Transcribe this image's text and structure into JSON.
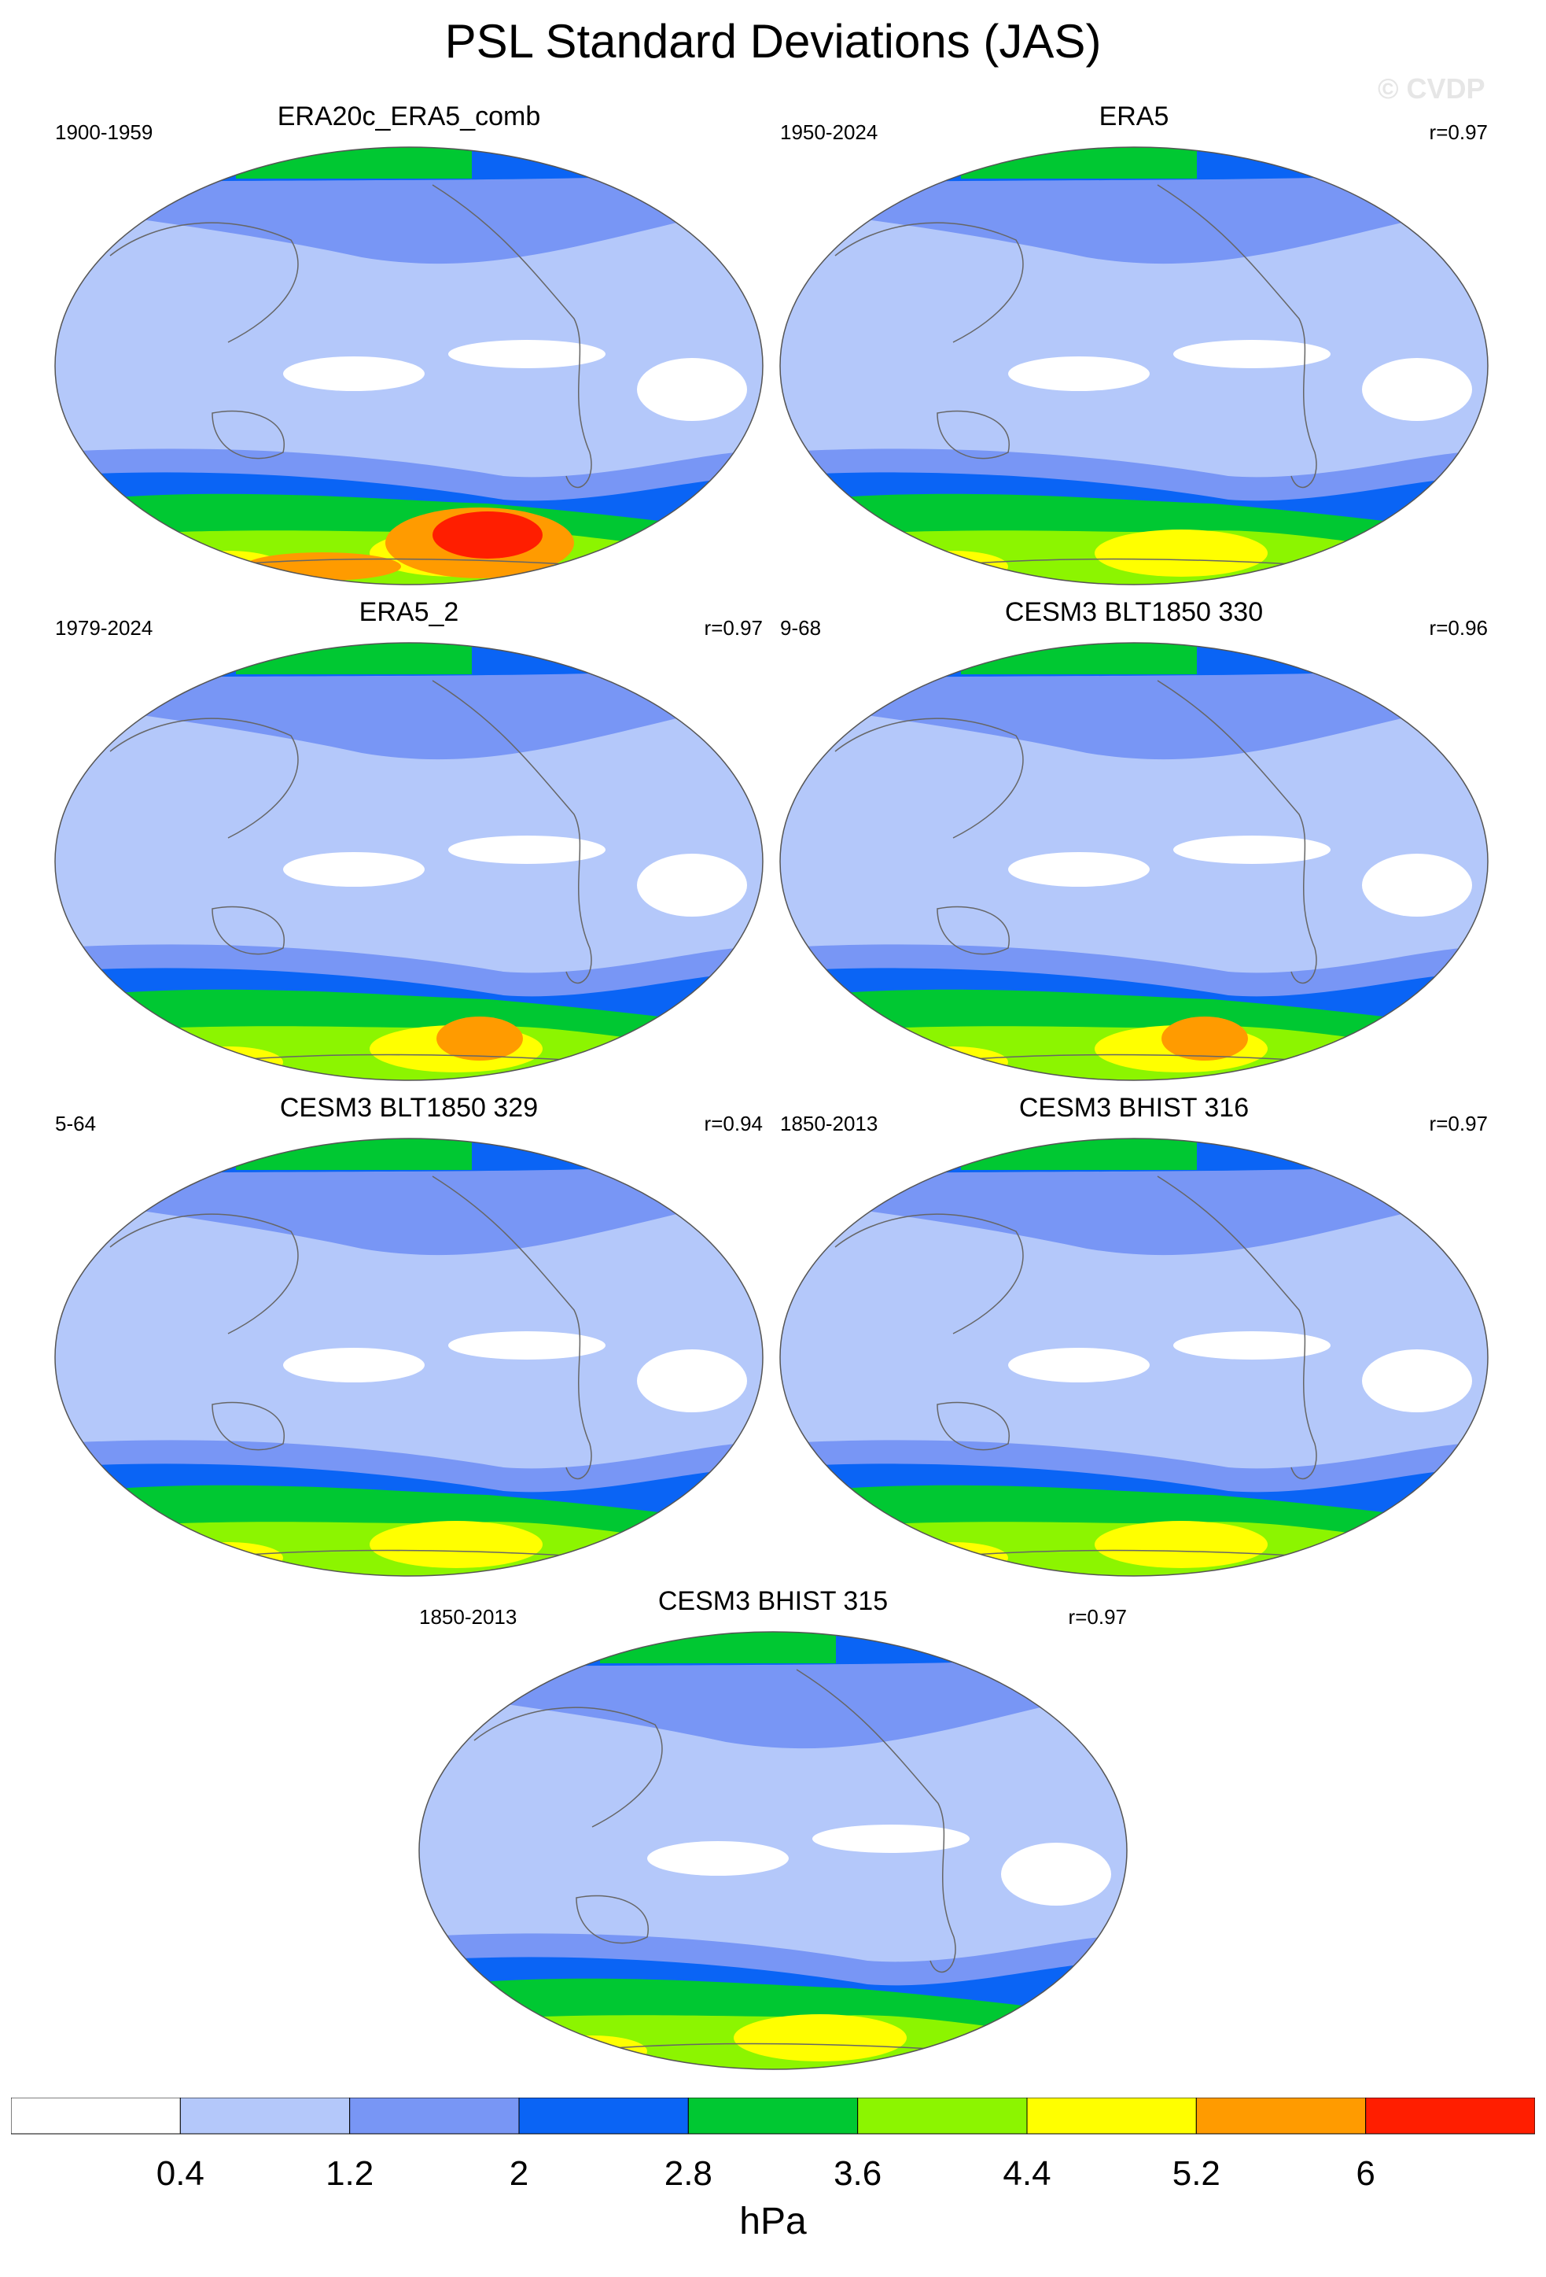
{
  "title": "PSL Standard Deviations (JAS)",
  "watermark": "© CVDP",
  "panels": [
    {
      "title": "ERA20c_ERA5_comb",
      "years": "1900-1959",
      "corr": ""
    },
    {
      "title": "ERA5",
      "years": "1950-2024",
      "corr": "r=0.97"
    },
    {
      "title": "ERA5_2",
      "years": "1979-2024",
      "corr": "r=0.97"
    },
    {
      "title": "CESM3 BLT1850 330",
      "years": "9-68",
      "corr": "r=0.96"
    },
    {
      "title": "CESM3 BLT1850 329",
      "years": "5-64",
      "corr": "r=0.94"
    },
    {
      "title": "CESM3 BHIST 316",
      "years": "1850-2013",
      "corr": "r=0.97"
    },
    {
      "title": "CESM3 BHIST 315",
      "years": "1850-2013",
      "corr": "r=0.97"
    }
  ],
  "colorbar": {
    "colors": [
      "#ffffff",
      "#b4c8fa",
      "#7896f5",
      "#0a64f5",
      "#00c832",
      "#8cf500",
      "#ffff00",
      "#ff9b00",
      "#ff1e00"
    ],
    "labels": [
      "0.4",
      "1.2",
      "2",
      "2.8",
      "3.6",
      "4.4",
      "5.2",
      "6"
    ],
    "units": "hPa"
  }
}
